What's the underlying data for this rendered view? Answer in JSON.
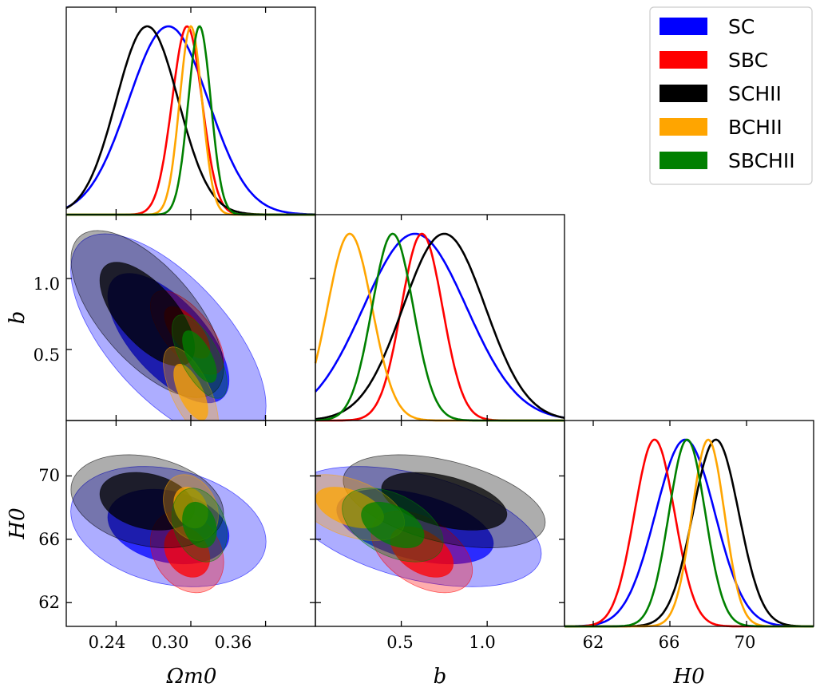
{
  "legend": [
    {
      "label": "SC",
      "color": "#0000ff"
    },
    {
      "label": "SBC",
      "color": "#ff0000"
    },
    {
      "label": "SCHII",
      "color": "#000000"
    },
    {
      "label": "BCHII",
      "color": "#ffa500"
    },
    {
      "label": "SBCHII",
      "color": "#008000"
    }
  ],
  "chart_data": {
    "type": "corner",
    "parameters": [
      "Ωm0",
      "b",
      "H0"
    ],
    "axis_labels": {
      "omega": "Ωm0",
      "b": "b",
      "h0": "H0"
    },
    "ticks": {
      "omega": [
        "0.24",
        "0.30",
        "0.36"
      ],
      "b": [
        "0.5",
        "1.0"
      ],
      "h0_x": [
        "62",
        "66",
        "70"
      ],
      "h0_y": [
        "62",
        "66",
        "70"
      ],
      "b_y": [
        "0.5",
        "1.0"
      ]
    },
    "ranges": {
      "omega": [
        0.2,
        0.4
      ],
      "b": [
        0.0,
        1.45
      ],
      "h0": [
        60.5,
        73.5
      ]
    },
    "series": [
      {
        "name": "SC",
        "color": "#0000ff",
        "omega": {
          "mean": 0.282,
          "sd": 0.032
        },
        "b": {
          "mean": 0.58,
          "sd": 0.3
        },
        "h0": {
          "mean": 66.8,
          "sd": 1.55
        }
      },
      {
        "name": "SBC",
        "color": "#ff0000",
        "omega": {
          "mean": 0.297,
          "sd": 0.012
        },
        "b": {
          "mean": 0.62,
          "sd": 0.12
        },
        "h0": {
          "mean": 65.2,
          "sd": 1.05
        }
      },
      {
        "name": "SCHII",
        "color": "#000000",
        "omega": {
          "mean": 0.265,
          "sd": 0.025
        },
        "b": {
          "mean": 0.75,
          "sd": 0.24
        },
        "h0": {
          "mean": 68.4,
          "sd": 1.2
        }
      },
      {
        "name": "BCHII",
        "color": "#ffa500",
        "omega": {
          "mean": 0.3,
          "sd": 0.009
        },
        "b": {
          "mean": 0.2,
          "sd": 0.13
        },
        "h0": {
          "mean": 68.0,
          "sd": 0.85
        }
      },
      {
        "name": "SBCHII",
        "color": "#008000",
        "omega": {
          "mean": 0.307,
          "sd": 0.009
        },
        "b": {
          "mean": 0.45,
          "sd": 0.12
        },
        "h0": {
          "mean": 66.9,
          "sd": 0.95
        }
      }
    ]
  }
}
